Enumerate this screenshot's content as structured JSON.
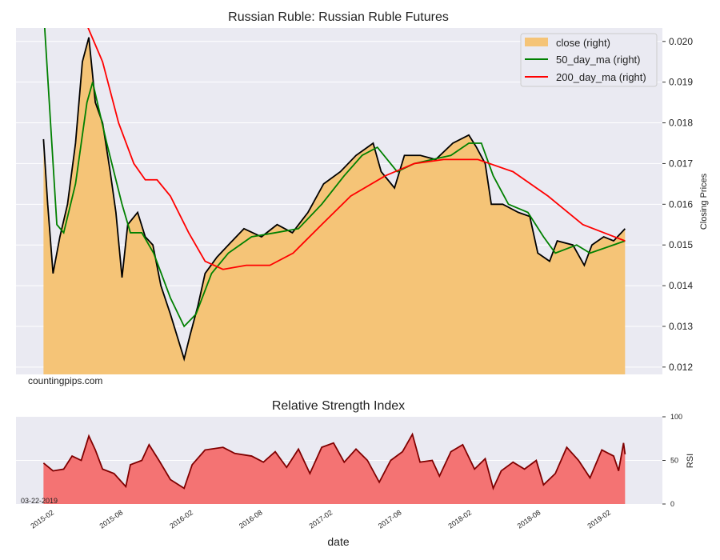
{
  "chart_data": [
    {
      "type": "area",
      "title": "Russian Ruble: Russian Ruble Futures",
      "ylabel": "Closing Prices",
      "y_axis_side": "right",
      "ylim": [
        0.01182,
        0.02033
      ],
      "yticks": [
        "0.012",
        "0.013",
        "0.014",
        "0.015",
        "0.016",
        "0.017",
        "0.018",
        "0.019",
        "0.020"
      ],
      "grid": true,
      "legend_position": "top-right",
      "watermark": "countingpips.com",
      "colors": {
        "close_fill": "#f5c477",
        "close_line": "#000000",
        "ma50": "#008000",
        "ma200": "#ff0000",
        "background": "#eaeaf2"
      },
      "series": [
        {
          "name": "close (right)",
          "dates": [
            "2015-01-16",
            "2015-01-27",
            "2015-02-10",
            "2015-02-28",
            "2015-03-20",
            "2015-04-10",
            "2015-04-28",
            "2015-05-15",
            "2015-06-01",
            "2015-06-20",
            "2015-07-10",
            "2015-07-25",
            "2015-08-10",
            "2015-08-25",
            "2015-09-20",
            "2015-10-10",
            "2015-10-30",
            "2015-11-20",
            "2015-12-15",
            "2016-01-20",
            "2016-02-05",
            "2016-02-25",
            "2016-03-15",
            "2016-04-15",
            "2016-05-15",
            "2016-06-25",
            "2016-08-10",
            "2016-09-20",
            "2016-10-30",
            "2016-12-10",
            "2017-01-20",
            "2017-03-05",
            "2017-04-15",
            "2017-05-30",
            "2017-06-20",
            "2017-07-25",
            "2017-08-20",
            "2017-10-01",
            "2017-11-10",
            "2017-12-25",
            "2018-02-05",
            "2018-02-25",
            "2018-03-20",
            "2018-04-05",
            "2018-05-05",
            "2018-06-15",
            "2018-07-15",
            "2018-08-05",
            "2018-09-05",
            "2018-09-25",
            "2018-11-05",
            "2018-12-05",
            "2018-12-25",
            "2019-01-25",
            "2019-02-20",
            "2019-03-22"
          ],
          "values": [
            0.0176,
            0.016,
            0.0143,
            0.0152,
            0.016,
            0.0175,
            0.0195,
            0.0201,
            0.0185,
            0.018,
            0.0168,
            0.0158,
            0.0142,
            0.0155,
            0.0158,
            0.0152,
            0.015,
            0.014,
            0.0133,
            0.0122,
            0.0128,
            0.0135,
            0.0143,
            0.0147,
            0.015,
            0.0154,
            0.0152,
            0.0155,
            0.0153,
            0.0158,
            0.0165,
            0.0168,
            0.0172,
            0.0175,
            0.0168,
            0.0164,
            0.0172,
            0.0172,
            0.0171,
            0.0175,
            0.0177,
            0.0174,
            0.017,
            0.016,
            0.016,
            0.0158,
            0.0157,
            0.0148,
            0.0146,
            0.0151,
            0.015,
            0.0145,
            0.015,
            0.0152,
            0.0151,
            0.0154
          ]
        },
        {
          "name": "50_day_ma (right)",
          "dates": [
            "2015-01-18",
            "2015-02-20",
            "2015-03-10",
            "2015-04-10",
            "2015-05-10",
            "2015-05-25",
            "2015-07-01",
            "2015-08-10",
            "2015-09-01",
            "2015-10-01",
            "2015-11-01",
            "2015-12-15",
            "2016-01-20",
            "2016-02-20",
            "2016-04-01",
            "2016-05-15",
            "2016-07-15",
            "2016-09-15",
            "2016-11-15",
            "2017-01-15",
            "2017-03-15",
            "2017-05-01",
            "2017-06-10",
            "2017-08-01",
            "2017-09-15",
            "2017-11-01",
            "2017-12-20",
            "2018-02-05",
            "2018-03-10",
            "2018-04-10",
            "2018-05-20",
            "2018-07-10",
            "2018-08-20",
            "2018-09-20",
            "2018-11-15",
            "2018-12-20",
            "2019-01-20",
            "2019-03-22"
          ],
          "values": [
            0.0205,
            0.0155,
            0.0153,
            0.0165,
            0.0185,
            0.019,
            0.0175,
            0.016,
            0.0153,
            0.0153,
            0.0148,
            0.0137,
            0.013,
            0.0133,
            0.0143,
            0.0148,
            0.0152,
            0.0153,
            0.0154,
            0.016,
            0.0167,
            0.0172,
            0.0174,
            0.0168,
            0.017,
            0.0171,
            0.0172,
            0.0175,
            0.0175,
            0.0167,
            0.016,
            0.0158,
            0.0152,
            0.0148,
            0.015,
            0.0148,
            0.0149,
            0.0151
          ]
        },
        {
          "name": "200_day_ma (right)",
          "dates": [
            "2015-05-10",
            "2015-06-20",
            "2015-08-01",
            "2015-09-10",
            "2015-10-10",
            "2015-11-10",
            "2015-12-15",
            "2016-02-01",
            "2016-03-15",
            "2016-05-01",
            "2016-07-01",
            "2016-09-01",
            "2016-11-01",
            "2017-01-15",
            "2017-04-01",
            "2017-07-01",
            "2017-09-15",
            "2017-12-01",
            "2018-03-01",
            "2018-06-01",
            "2018-09-01",
            "2018-12-01",
            "2019-03-22"
          ],
          "values": [
            0.0204,
            0.0195,
            0.018,
            0.017,
            0.0166,
            0.0166,
            0.0162,
            0.0153,
            0.0146,
            0.0144,
            0.0145,
            0.0145,
            0.0148,
            0.0155,
            0.0162,
            0.0167,
            0.017,
            0.0171,
            0.0171,
            0.0168,
            0.0162,
            0.0155,
            0.0151
          ]
        }
      ]
    },
    {
      "type": "area",
      "title": "Relative Strength Index",
      "xlabel": "date",
      "ylabel": "RSI",
      "ylim": [
        0,
        100
      ],
      "yticks": [
        "0",
        "50",
        "100"
      ],
      "xticks": [
        "2015-02",
        "2015-08",
        "2016-02",
        "2016-08",
        "2017-02",
        "2017-08",
        "2018-02",
        "2018-08",
        "2019-02"
      ],
      "annotation": "03-22-2019",
      "colors": {
        "fill": "#f47373",
        "line": "#800000"
      },
      "series": [
        {
          "dates": [
            "2015-01-16",
            "2015-02-10",
            "2015-03-10",
            "2015-04-01",
            "2015-04-25",
            "2015-05-15",
            "2015-06-01",
            "2015-06-20",
            "2015-07-20",
            "2015-08-20",
            "2015-09-01",
            "2015-10-01",
            "2015-10-20",
            "2015-11-15",
            "2015-12-15",
            "2016-01-20",
            "2016-02-10",
            "2016-03-15",
            "2016-05-01",
            "2016-06-01",
            "2016-07-15",
            "2016-08-15",
            "2016-09-15",
            "2016-10-15",
            "2016-11-15",
            "2016-12-15",
            "2017-01-15",
            "2017-02-15",
            "2017-03-15",
            "2017-04-15",
            "2017-05-15",
            "2017-06-15",
            "2017-07-15",
            "2017-08-15",
            "2017-09-10",
            "2017-09-30",
            "2017-11-01",
            "2017-11-20",
            "2017-12-20",
            "2018-01-20",
            "2018-02-20",
            "2018-03-20",
            "2018-04-10",
            "2018-05-01",
            "2018-06-01",
            "2018-07-01",
            "2018-08-01",
            "2018-08-20",
            "2018-09-20",
            "2018-10-20",
            "2018-11-20",
            "2018-12-20",
            "2019-01-20",
            "2019-02-20",
            "2019-03-05",
            "2019-03-18",
            "2019-03-22"
          ],
          "values": [
            47,
            38,
            40,
            55,
            50,
            78,
            62,
            40,
            35,
            20,
            45,
            50,
            68,
            50,
            28,
            18,
            45,
            62,
            65,
            58,
            55,
            48,
            60,
            42,
            63,
            35,
            65,
            70,
            48,
            63,
            50,
            25,
            50,
            60,
            80,
            48,
            50,
            32,
            60,
            68,
            40,
            52,
            18,
            38,
            48,
            40,
            50,
            22,
            35,
            65,
            50,
            30,
            62,
            55,
            38,
            70,
            57
          ]
        }
      ]
    }
  ]
}
